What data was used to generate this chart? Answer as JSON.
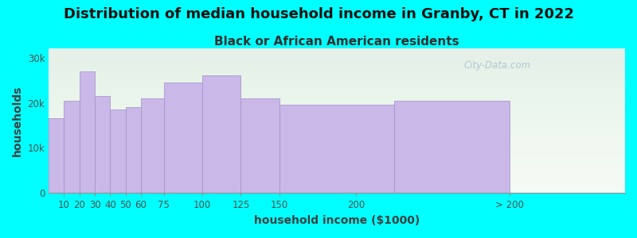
{
  "title": "Distribution of median household income in Granby, CT in 2022",
  "subtitle": "Black or African American residents",
  "xlabel": "household income ($1000)",
  "ylabel": "households",
  "background_color": "#00FFFF",
  "bar_color": "#C9B8E8",
  "bar_edge_color": "#a090c8",
  "categories": [
    "10",
    "20",
    "30",
    "40",
    "50",
    "60",
    "75",
    "100",
    "125",
    "150",
    "200",
    "> 200"
  ],
  "bar_lefts": [
    0,
    10,
    20,
    30,
    40,
    50,
    60,
    75,
    100,
    125,
    150,
    225
  ],
  "bar_widths": [
    10,
    10,
    10,
    10,
    10,
    10,
    15,
    25,
    25,
    25,
    75,
    75
  ],
  "values": [
    16500,
    20500,
    27000,
    21500,
    18500,
    19000,
    21000,
    24500,
    26000,
    21000,
    19500,
    20500
  ],
  "xtick_pos": [
    10,
    20,
    30,
    40,
    50,
    60,
    75,
    100,
    125,
    150,
    200,
    300
  ],
  "xtick_labels": [
    "10",
    "20",
    "30",
    "40",
    "50",
    "60",
    "75",
    "100",
    "125",
    "150",
    "200",
    "> 200"
  ],
  "ylim": [
    0,
    32000
  ],
  "yticks": [
    0,
    10000,
    20000,
    30000
  ],
  "ytick_labels": [
    "0",
    "10k",
    "20k",
    "30k"
  ],
  "xlim": [
    0,
    375
  ],
  "title_fontsize": 13,
  "subtitle_fontsize": 11,
  "axis_label_fontsize": 10,
  "tick_fontsize": 8.5,
  "watermark_text": "City-Data.com"
}
